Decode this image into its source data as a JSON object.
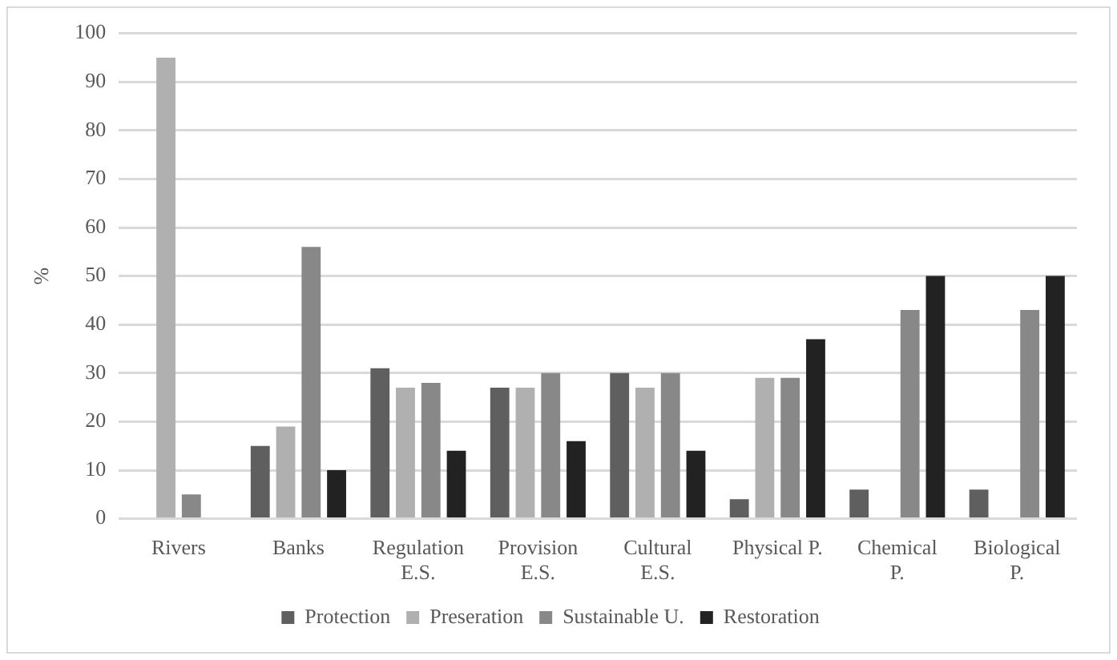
{
  "chart_data": {
    "type": "bar",
    "ylabel": "%",
    "categories": [
      "Rivers",
      "Banks",
      "Regulation\nE.S.",
      "Provision\nE.S.",
      "Cultural\nE.S.",
      "Physical P.",
      "Chemical\nP.",
      "Biological\nP."
    ],
    "series": [
      {
        "name": "Protection",
        "color": "#5f5f5f",
        "values": [
          0,
          15,
          31,
          27,
          30,
          4,
          6,
          6
        ]
      },
      {
        "name": "Preseration",
        "color": "#b0b0b0",
        "values": [
          95,
          19,
          27,
          27,
          27,
          29,
          0,
          0
        ]
      },
      {
        "name": "Sustainable U.",
        "color": "#888888",
        "values": [
          5,
          56,
          28,
          30,
          30,
          29,
          43,
          43
        ]
      },
      {
        "name": "Restoration",
        "color": "#222222",
        "values": [
          0,
          10,
          14,
          16,
          14,
          37,
          50,
          50
        ]
      }
    ],
    "ylim": [
      0,
      100
    ],
    "yticks": [
      0,
      10,
      20,
      30,
      40,
      50,
      60,
      70,
      80,
      90,
      100
    ],
    "grid": "y",
    "legend": "bottom"
  }
}
